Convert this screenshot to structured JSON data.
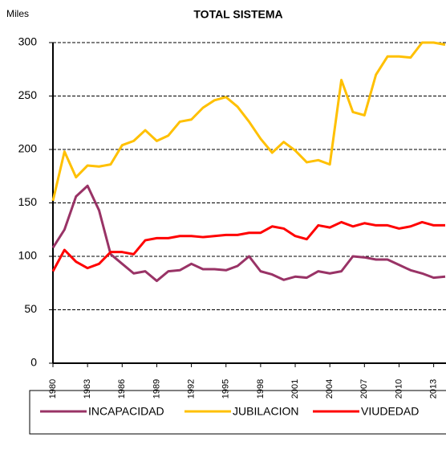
{
  "chart_data": {
    "type": "line",
    "title": "TOTAL SISTEMA",
    "y_unit_label": "Miles",
    "x": [
      1980,
      1981,
      1982,
      1983,
      1984,
      1985,
      1986,
      1987,
      1988,
      1989,
      1990,
      1991,
      1992,
      1993,
      1994,
      1995,
      1996,
      1997,
      1998,
      1999,
      2000,
      2001,
      2002,
      2003,
      2004,
      2005,
      2006,
      2007,
      2008,
      2009,
      2010,
      2011,
      2012,
      2013,
      2014
    ],
    "xlim": [
      1980,
      2014
    ],
    "xticks": [
      1980,
      1983,
      1986,
      1989,
      1992,
      1995,
      1998,
      2001,
      2004,
      2007,
      2010,
      2013
    ],
    "ylim": [
      0,
      300
    ],
    "yticks": [
      0,
      50,
      100,
      150,
      200,
      250,
      300
    ],
    "grid": true,
    "legend": "bottom",
    "series": [
      {
        "name": "INCAPACIDAD",
        "color": "#993366",
        "values": [
          108,
          125,
          156,
          166,
          143,
          102,
          93,
          84,
          86,
          77,
          86,
          87,
          93,
          88,
          88,
          87,
          91,
          100,
          86,
          83,
          78,
          81,
          80,
          86,
          84,
          86,
          100,
          99,
          97,
          97,
          92,
          87,
          84,
          80,
          81
        ]
      },
      {
        "name": "JUBILACION",
        "color": "#ffc000",
        "values": [
          152,
          198,
          174,
          185,
          184,
          186,
          204,
          208,
          218,
          208,
          213,
          226,
          228,
          239,
          246,
          249,
          240,
          226,
          210,
          197,
          207,
          199,
          188,
          190,
          186,
          265,
          235,
          232,
          270,
          287,
          287,
          286,
          300,
          300,
          298
        ]
      },
      {
        "name": "VIUDEDAD",
        "color": "#ff0000",
        "values": [
          86,
          106,
          95,
          89,
          93,
          104,
          104,
          102,
          115,
          117,
          117,
          119,
          119,
          118,
          119,
          120,
          120,
          122,
          122,
          128,
          126,
          119,
          116,
          129,
          127,
          132,
          128,
          131,
          129,
          129,
          126,
          128,
          132,
          129,
          129
        ]
      }
    ]
  }
}
